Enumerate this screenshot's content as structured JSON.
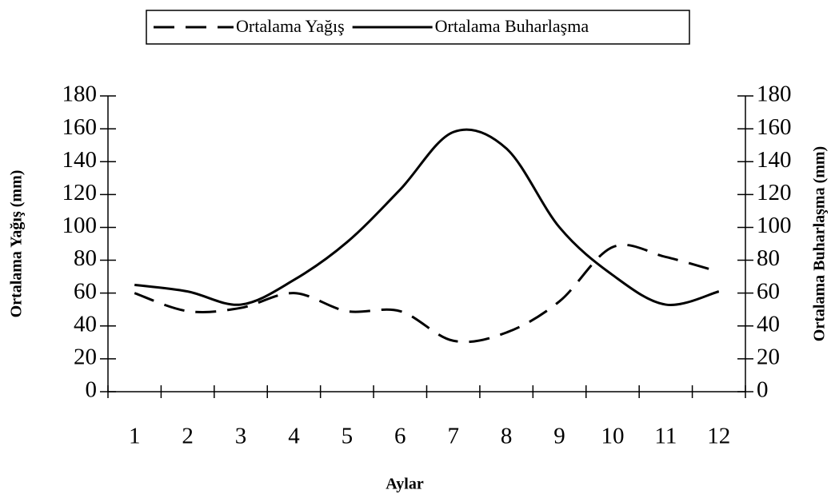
{
  "chart_data": {
    "type": "line",
    "categories": [
      "1",
      "2",
      "3",
      "4",
      "5",
      "6",
      "7",
      "8",
      "9",
      "10",
      "11",
      "12"
    ],
    "series": [
      {
        "name": "Ortalama Yağış",
        "color": "#000000",
        "dash": "dashed",
        "values": [
          60,
          49,
          51,
          60,
          49,
          49,
          31,
          36,
          55,
          88,
          82,
          73
        ]
      },
      {
        "name": "Ortalama Buharlaşma",
        "color": "#000000",
        "dash": "solid",
        "axis": "y2",
        "values": [
          65,
          61,
          53,
          68,
          91,
          123,
          158,
          148,
          100,
          71,
          53,
          61
        ]
      }
    ],
    "ylabel": "Ortalama Yağış (mm)",
    "y2label": "Ortalama Buharlaşma (mm)",
    "xlabel": "Aylar",
    "ylim": [
      0,
      180
    ],
    "yticks": [
      0,
      20,
      40,
      60,
      80,
      100,
      120,
      140,
      160,
      180
    ],
    "y2lim": [
      0,
      180
    ],
    "y2ticks": [
      0,
      20,
      40,
      60,
      80,
      100,
      120,
      140,
      160,
      180
    ],
    "legend": "top",
    "smooth": true
  }
}
